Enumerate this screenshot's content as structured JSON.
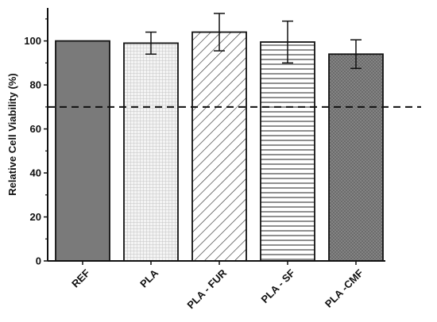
{
  "chart_data": {
    "type": "bar",
    "title": "",
    "xlabel": "",
    "ylabel": "Relative Cell Viability (%)",
    "ylim": [
      0,
      115
    ],
    "yticks": [
      0,
      20,
      40,
      60,
      80,
      100
    ],
    "grid": false,
    "legend": "none",
    "categories": [
      "REF",
      "PLA",
      "PLA - FUR",
      "PLA - SF",
      "PLA -CMF"
    ],
    "values": [
      100,
      99,
      104,
      99.5,
      94
    ],
    "errors": [
      0,
      5,
      8.5,
      9.5,
      6.5
    ],
    "patterns": [
      "solid-dark",
      "grid",
      "diagonal",
      "horizontal",
      "crosshatch-dark"
    ],
    "reference_line": {
      "value": 70,
      "style": "dashed"
    },
    "colors": {
      "bar_dark": "#7a7a7a",
      "bar_cmf": "#8c8c8c",
      "stroke": "#111111"
    }
  }
}
